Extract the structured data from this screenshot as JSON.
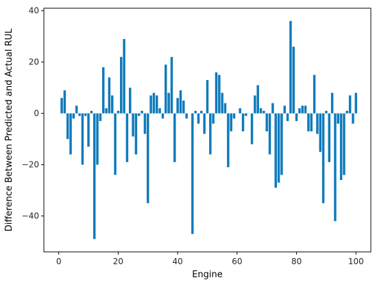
{
  "chart_data": {
    "type": "bar",
    "title": "",
    "xlabel": "Engine",
    "ylabel": "Difference Between Predicted and Actual RUL",
    "xlim": [
      -5,
      105
    ],
    "ylim": [
      -54,
      41
    ],
    "xticks": [
      0,
      20,
      40,
      60,
      80,
      100
    ],
    "yticks": [
      -40,
      -20,
      0,
      20,
      40
    ],
    "grid": false,
    "bar_color": "#0e7abb",
    "series": [
      {
        "x": [
          1,
          2,
          3,
          4,
          5,
          6,
          7,
          8,
          9,
          10,
          11,
          12,
          13,
          14,
          15,
          16,
          17,
          18,
          19,
          20,
          21,
          22,
          23,
          24,
          25,
          26,
          27,
          28,
          29,
          30,
          31,
          32,
          33,
          34,
          35,
          36,
          37,
          38,
          39,
          40,
          41,
          42,
          43,
          44,
          45,
          46,
          47,
          48,
          49,
          50,
          51,
          52,
          53,
          54,
          55,
          56,
          57,
          58,
          59,
          60,
          61,
          62,
          63,
          64,
          65,
          66,
          67,
          68,
          69,
          70,
          71,
          72,
          73,
          74,
          75,
          76,
          77,
          78,
          79,
          80,
          81,
          82,
          83,
          84,
          85,
          86,
          87,
          88,
          89,
          90,
          91,
          92,
          93,
          94,
          95,
          96,
          97,
          98,
          99,
          100
        ],
        "values": [
          6,
          9,
          -10,
          -16,
          -2,
          3,
          -1,
          -20,
          -1,
          -13,
          1,
          -49,
          -20,
          -3,
          18,
          2,
          14,
          7,
          -24,
          1,
          22,
          29,
          -19,
          10,
          -9,
          -16,
          -1,
          1,
          -8,
          -35,
          7,
          8,
          7,
          2,
          -2,
          19,
          8,
          22,
          -19,
          6,
          9,
          5,
          -2,
          0,
          -47,
          1,
          -4,
          1,
          -8,
          13,
          -16,
          -4,
          16,
          15,
          8,
          4,
          -21,
          -7,
          -2,
          0,
          2,
          -7,
          -1,
          0,
          -12,
          7,
          11,
          2,
          1,
          -7,
          -16,
          4,
          -29,
          -27,
          -24,
          3,
          -3,
          36,
          26,
          -3,
          2,
          3,
          3,
          -7,
          -7,
          15,
          -8,
          -15,
          -35,
          1,
          -19,
          8,
          -42,
          -4,
          -26,
          -24,
          1,
          7,
          -4,
          8
        ]
      }
    ]
  }
}
